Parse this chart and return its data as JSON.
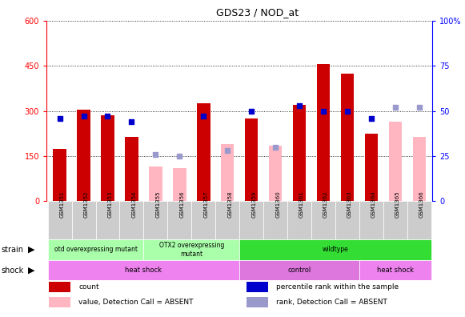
{
  "title": "GDS23 / NOD_at",
  "samples": [
    "GSM1351",
    "GSM1352",
    "GSM1353",
    "GSM1354",
    "GSM1355",
    "GSM1356",
    "GSM1357",
    "GSM1358",
    "GSM1359",
    "GSM1360",
    "GSM1361",
    "GSM1362",
    "GSM1363",
    "GSM1364",
    "GSM1365",
    "GSM1366"
  ],
  "count_present": [
    175,
    305,
    285,
    215,
    0,
    0,
    325,
    0,
    275,
    0,
    320,
    455,
    425,
    225,
    0,
    0
  ],
  "count_absent": [
    0,
    0,
    0,
    0,
    115,
    110,
    0,
    190,
    0,
    185,
    0,
    0,
    0,
    0,
    265,
    215
  ],
  "pct_present": [
    46,
    47,
    47,
    44,
    0,
    0,
    47,
    0,
    50,
    0,
    53,
    50,
    50,
    46,
    0,
    0
  ],
  "pct_absent": [
    0,
    0,
    0,
    0,
    26,
    25,
    0,
    28,
    0,
    30,
    0,
    0,
    0,
    0,
    52,
    52
  ],
  "ylim_left": [
    0,
    600
  ],
  "yticks_left": [
    0,
    150,
    300,
    450,
    600
  ],
  "ylim_right": [
    0,
    100
  ],
  "yticks_right": [
    0,
    25,
    50,
    75,
    100
  ],
  "red_color": "#cc0000",
  "pink_color": "#ffb6c1",
  "blue_color": "#0000cc",
  "lightblue_color": "#9999cc",
  "strain_defs": [
    {
      "start": 0,
      "end": 3,
      "label": "otd overexpressing mutant",
      "color": "#aaffaa"
    },
    {
      "start": 4,
      "end": 7,
      "label": "OTX2 overexpressing\nmutant",
      "color": "#aaffaa"
    },
    {
      "start": 8,
      "end": 15,
      "label": "wildtype",
      "color": "#33dd33"
    }
  ],
  "shock_defs": [
    {
      "start": 0,
      "end": 7,
      "label": "heat shock",
      "color": "#ee82ee"
    },
    {
      "start": 8,
      "end": 12,
      "label": "control",
      "color": "#dd77dd"
    },
    {
      "start": 13,
      "end": 15,
      "label": "heat shock",
      "color": "#ee82ee"
    }
  ],
  "legend_labels": [
    "count",
    "percentile rank within the sample",
    "value, Detection Call = ABSENT",
    "rank, Detection Call = ABSENT"
  ],
  "legend_colors": [
    "#cc0000",
    "#0000cc",
    "#ffb6c1",
    "#9999cc"
  ],
  "bar_width": 0.55,
  "xticklabel_bg": "#dddddd"
}
